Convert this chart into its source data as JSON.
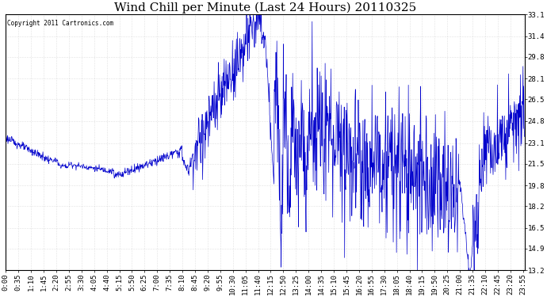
{
  "title": "Wind Chill per Minute (Last 24 Hours) 20110325",
  "copyright_text": "Copyright 2011 Cartronics.com",
  "line_color": "#0000cc",
  "background_color": "#ffffff",
  "plot_background": "#ffffff",
  "yticks": [
    13.2,
    14.9,
    16.5,
    18.2,
    19.8,
    21.5,
    23.1,
    24.8,
    26.5,
    28.1,
    29.8,
    31.4,
    33.1
  ],
  "ymin": 13.2,
  "ymax": 33.1,
  "grid_color": "#c8c8c8",
  "title_fontsize": 11,
  "tick_fontsize": 6.5,
  "tick_interval_min": 35,
  "n_points": 1440
}
